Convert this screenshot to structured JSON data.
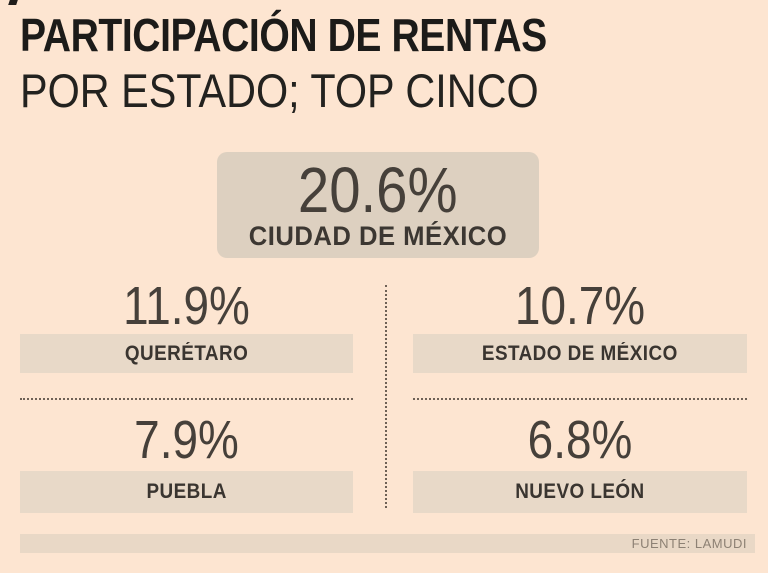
{
  "header": {
    "title_line1": "PARTICIPACIÓN DE RENTAS",
    "title_line2": "POR ESTADO; TOP CINCO"
  },
  "hero": {
    "value": "20.6%",
    "label": "CIUDAD DE MÉXICO"
  },
  "states": [
    {
      "value": "11.9%",
      "label": "QUERÉTARO"
    },
    {
      "value": "10.7%",
      "label": "ESTADO DE MÉXICO"
    },
    {
      "value": "7.9%",
      "label": "PUEBLA"
    },
    {
      "value": "6.8%",
      "label": "NUEVO LEÓN"
    }
  ],
  "footer": {
    "source": "FUENTE: LAMUDI"
  },
  "colors": {
    "background": "#fde5d1",
    "hero_box": "#ddd0c0",
    "label_bar": "#e8d9c8",
    "footer_bar": "#e9d8c6",
    "title_text": "#1c1b19",
    "value_text": "#46403a",
    "label_text": "#3a3530",
    "dotted_divider": "#6e6156",
    "source_text": "#8d8174"
  },
  "chart_data": {
    "type": "table",
    "title": "PARTICIPACIÓN DE RENTAS POR ESTADO; TOP CINCO",
    "categories": [
      "Ciudad de México",
      "Querétaro",
      "Estado de México",
      "Puebla",
      "Nuevo León"
    ],
    "values": [
      20.6,
      11.9,
      10.7,
      7.9,
      6.8
    ],
    "unit": "%",
    "legend": "none",
    "grid": false,
    "source": "FUENTE: LAMUDI"
  }
}
